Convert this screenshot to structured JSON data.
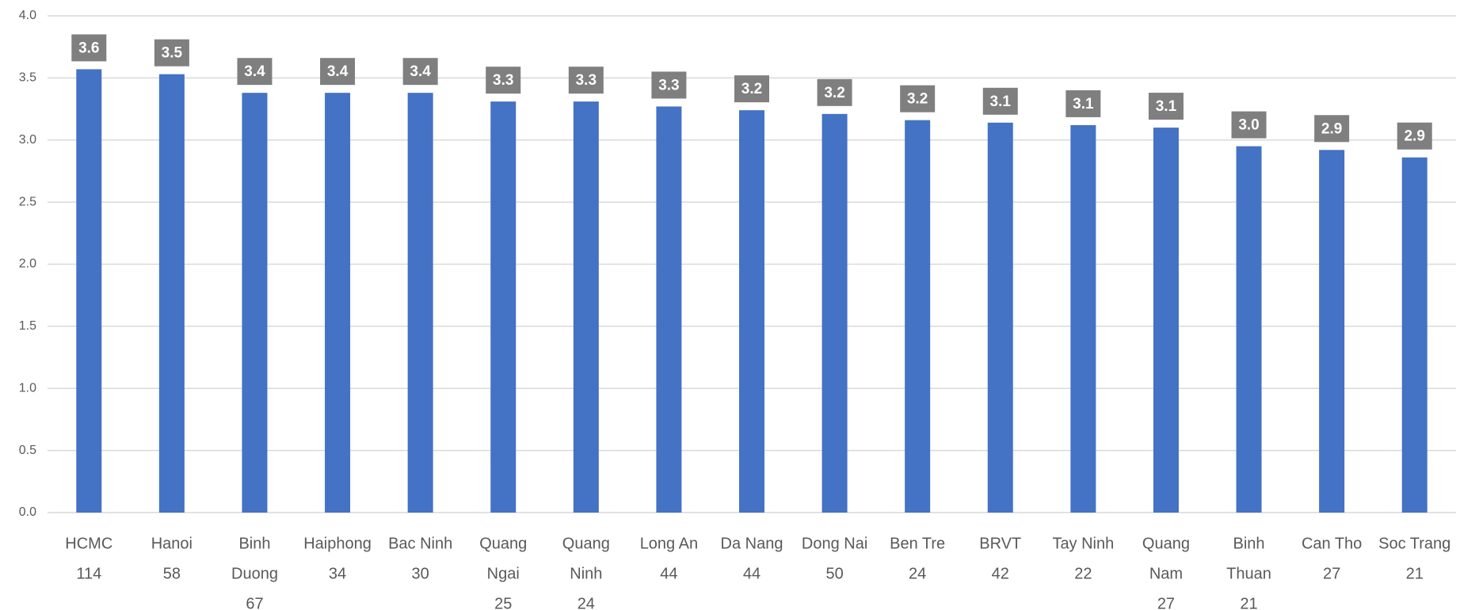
{
  "chart_data": {
    "type": "bar",
    "categories": [
      [
        "HCMC",
        "114"
      ],
      [
        "Hanoi",
        "58"
      ],
      [
        "Binh",
        "Duong",
        "67"
      ],
      [
        "Haiphong",
        "34"
      ],
      [
        "Bac Ninh",
        "30"
      ],
      [
        "Quang",
        "Ngai",
        "25"
      ],
      [
        "Quang",
        "Ninh",
        "24"
      ],
      [
        "Long An",
        "44"
      ],
      [
        "Da Nang",
        "44"
      ],
      [
        "Dong Nai",
        "50"
      ],
      [
        "Ben Tre",
        "24"
      ],
      [
        "BRVT",
        "42"
      ],
      [
        "Tay Ninh",
        "22"
      ],
      [
        "Quang",
        "Nam",
        "27"
      ],
      [
        "Binh",
        "Thuan",
        "21"
      ],
      [
        "Can Tho",
        "27"
      ],
      [
        "Soc Trang",
        "21"
      ]
    ],
    "values": [
      3.57,
      3.53,
      3.38,
      3.38,
      3.38,
      3.31,
      3.31,
      3.27,
      3.24,
      3.21,
      3.16,
      3.14,
      3.12,
      3.1,
      2.95,
      2.92,
      2.86
    ],
    "value_labels": [
      "3.6",
      "3.5",
      "3.4",
      "3.4",
      "3.4",
      "3.3",
      "3.3",
      "3.3",
      "3.2",
      "3.2",
      "3.2",
      "3.1",
      "3.1",
      "3.1",
      "3.0",
      "2.9",
      "2.9"
    ],
    "color": "#4472c4",
    "ylim": [
      0,
      4
    ],
    "yticks": [
      {
        "value": 0,
        "label": "0.0"
      },
      0.5,
      {
        "value": 1,
        "label": "1.0"
      },
      1.5,
      {
        "value": 2,
        "label": "2.0"
      },
      2.5,
      {
        "value": 3,
        "label": "3.0"
      },
      3.5,
      {
        "value": 4,
        "label": "4.0"
      }
    ],
    "grid": true
  }
}
